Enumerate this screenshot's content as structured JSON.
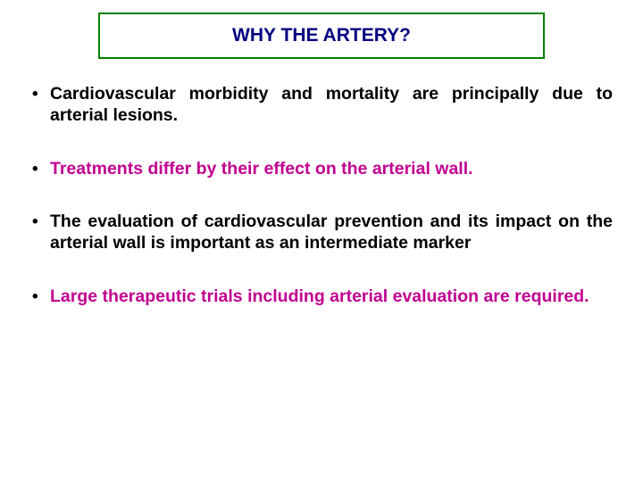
{
  "colors": {
    "background": "#ffffff",
    "title_border": "#008000",
    "title_text": "#000080",
    "bullet_marker": "#000000",
    "bullets": [
      "#000000",
      "#c00090",
      "#000000",
      "#c00090"
    ]
  },
  "title": {
    "text": "WHY THE ARTERY?",
    "fontsize": 21,
    "fontweight": "bold",
    "border_width": 2
  },
  "bullets_fontsize": 19.5,
  "bullets_fontweight": "bold",
  "bullets": [
    "Cardiovascular morbidity and mortality are principally due to arterial lesions.",
    "Treatments differ by their effect on the arterial wall.",
    "The evaluation of cardiovascular prevention and its impact on the arterial wall is important as an intermediate marker",
    "Large therapeutic trials including arterial evaluation are required."
  ]
}
